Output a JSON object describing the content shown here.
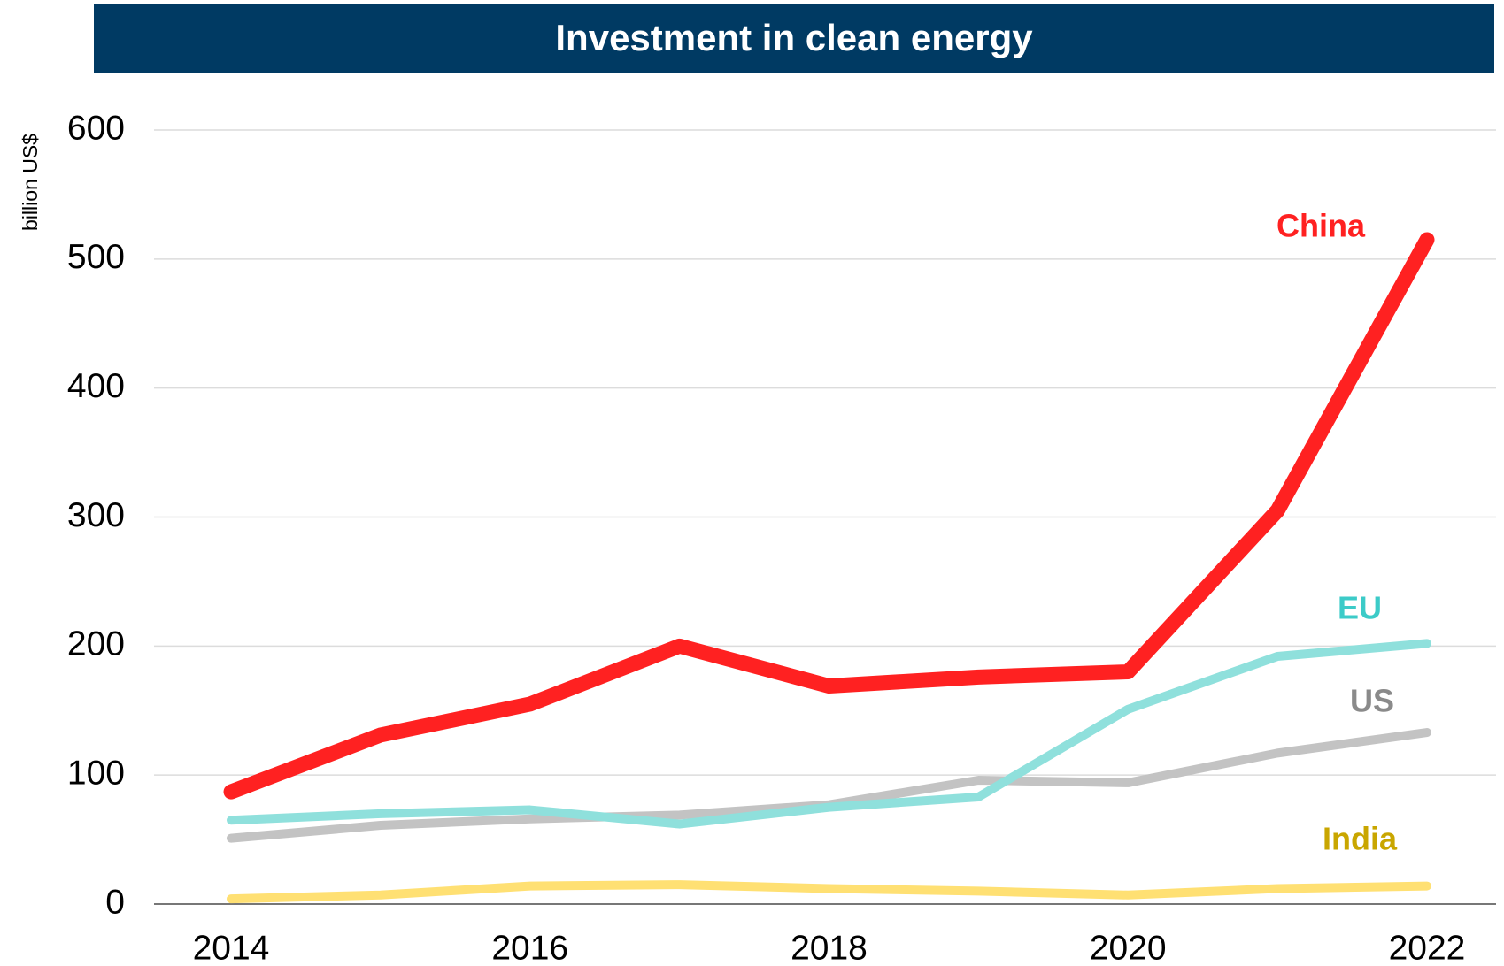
{
  "chart_data": {
    "type": "line",
    "title": "Investment in clean energy",
    "y_label": "billion US$",
    "x": [
      2014,
      2015,
      2016,
      2017,
      2018,
      2019,
      2020,
      2021,
      2022
    ],
    "xlim": [
      2014,
      2022
    ],
    "xticks": [
      2014,
      2016,
      2018,
      2020,
      2022
    ],
    "ylim": [
      0,
      600
    ],
    "yticks": [
      0,
      100,
      200,
      300,
      400,
      500,
      600
    ],
    "grid": true,
    "series": [
      {
        "name": "China",
        "color": "#ff2121",
        "label_color": "#ff2121",
        "values": [
          87,
          131,
          155,
          200,
          169,
          176,
          180,
          305,
          515
        ]
      },
      {
        "name": "EU",
        "color": "#8fe0dc",
        "label_color": "#3ccbc8",
        "values": [
          65,
          70,
          73,
          62,
          75,
          83,
          151,
          192,
          202
        ]
      },
      {
        "name": "US",
        "color": "#c3c3c3",
        "label_color": "#8a8a8a",
        "values": [
          51,
          61,
          66,
          69,
          77,
          96,
          94,
          117,
          133
        ]
      },
      {
        "name": "India",
        "color": "#ffe073",
        "label_color": "#c9a600",
        "values": [
          4,
          7,
          14,
          15,
          12,
          10,
          7,
          12,
          14
        ]
      }
    ]
  }
}
